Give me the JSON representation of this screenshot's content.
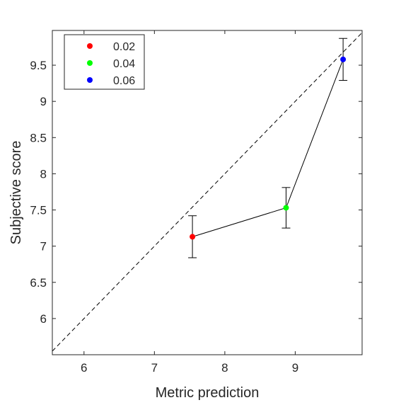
{
  "chart_data": {
    "type": "scatter",
    "title": "",
    "xlabel": "Metric prediction",
    "ylabel": "Subjective score",
    "xlim": [
      5.55,
      9.95
    ],
    "ylim": [
      5.5,
      9.98
    ],
    "xticks": [
      6,
      7,
      8,
      9
    ],
    "xtick_labels": [
      "6",
      "7",
      "8",
      "9"
    ],
    "yticks": [
      6,
      6.5,
      7,
      7.5,
      8,
      8.5,
      9,
      9.5
    ],
    "ytick_labels": [
      "6",
      "6.5",
      "7",
      "7.5",
      "8",
      "8.5",
      "9",
      "9.5"
    ],
    "grid": false,
    "legend_position": "top-left",
    "reference_line": "y = x (dashed)",
    "connecting_line": true,
    "points": [
      {
        "label": "0.02",
        "color": "#ff0000",
        "x": 7.54,
        "y": 7.13,
        "err_low": 6.84,
        "err_high": 7.42
      },
      {
        "label": "0.04",
        "color": "#00ff00",
        "x": 8.87,
        "y": 7.53,
        "err_low": 7.25,
        "err_high": 7.81
      },
      {
        "label": "0.06",
        "color": "#0000ff",
        "x": 9.68,
        "y": 9.58,
        "err_low": 9.29,
        "err_high": 9.87
      }
    ]
  }
}
